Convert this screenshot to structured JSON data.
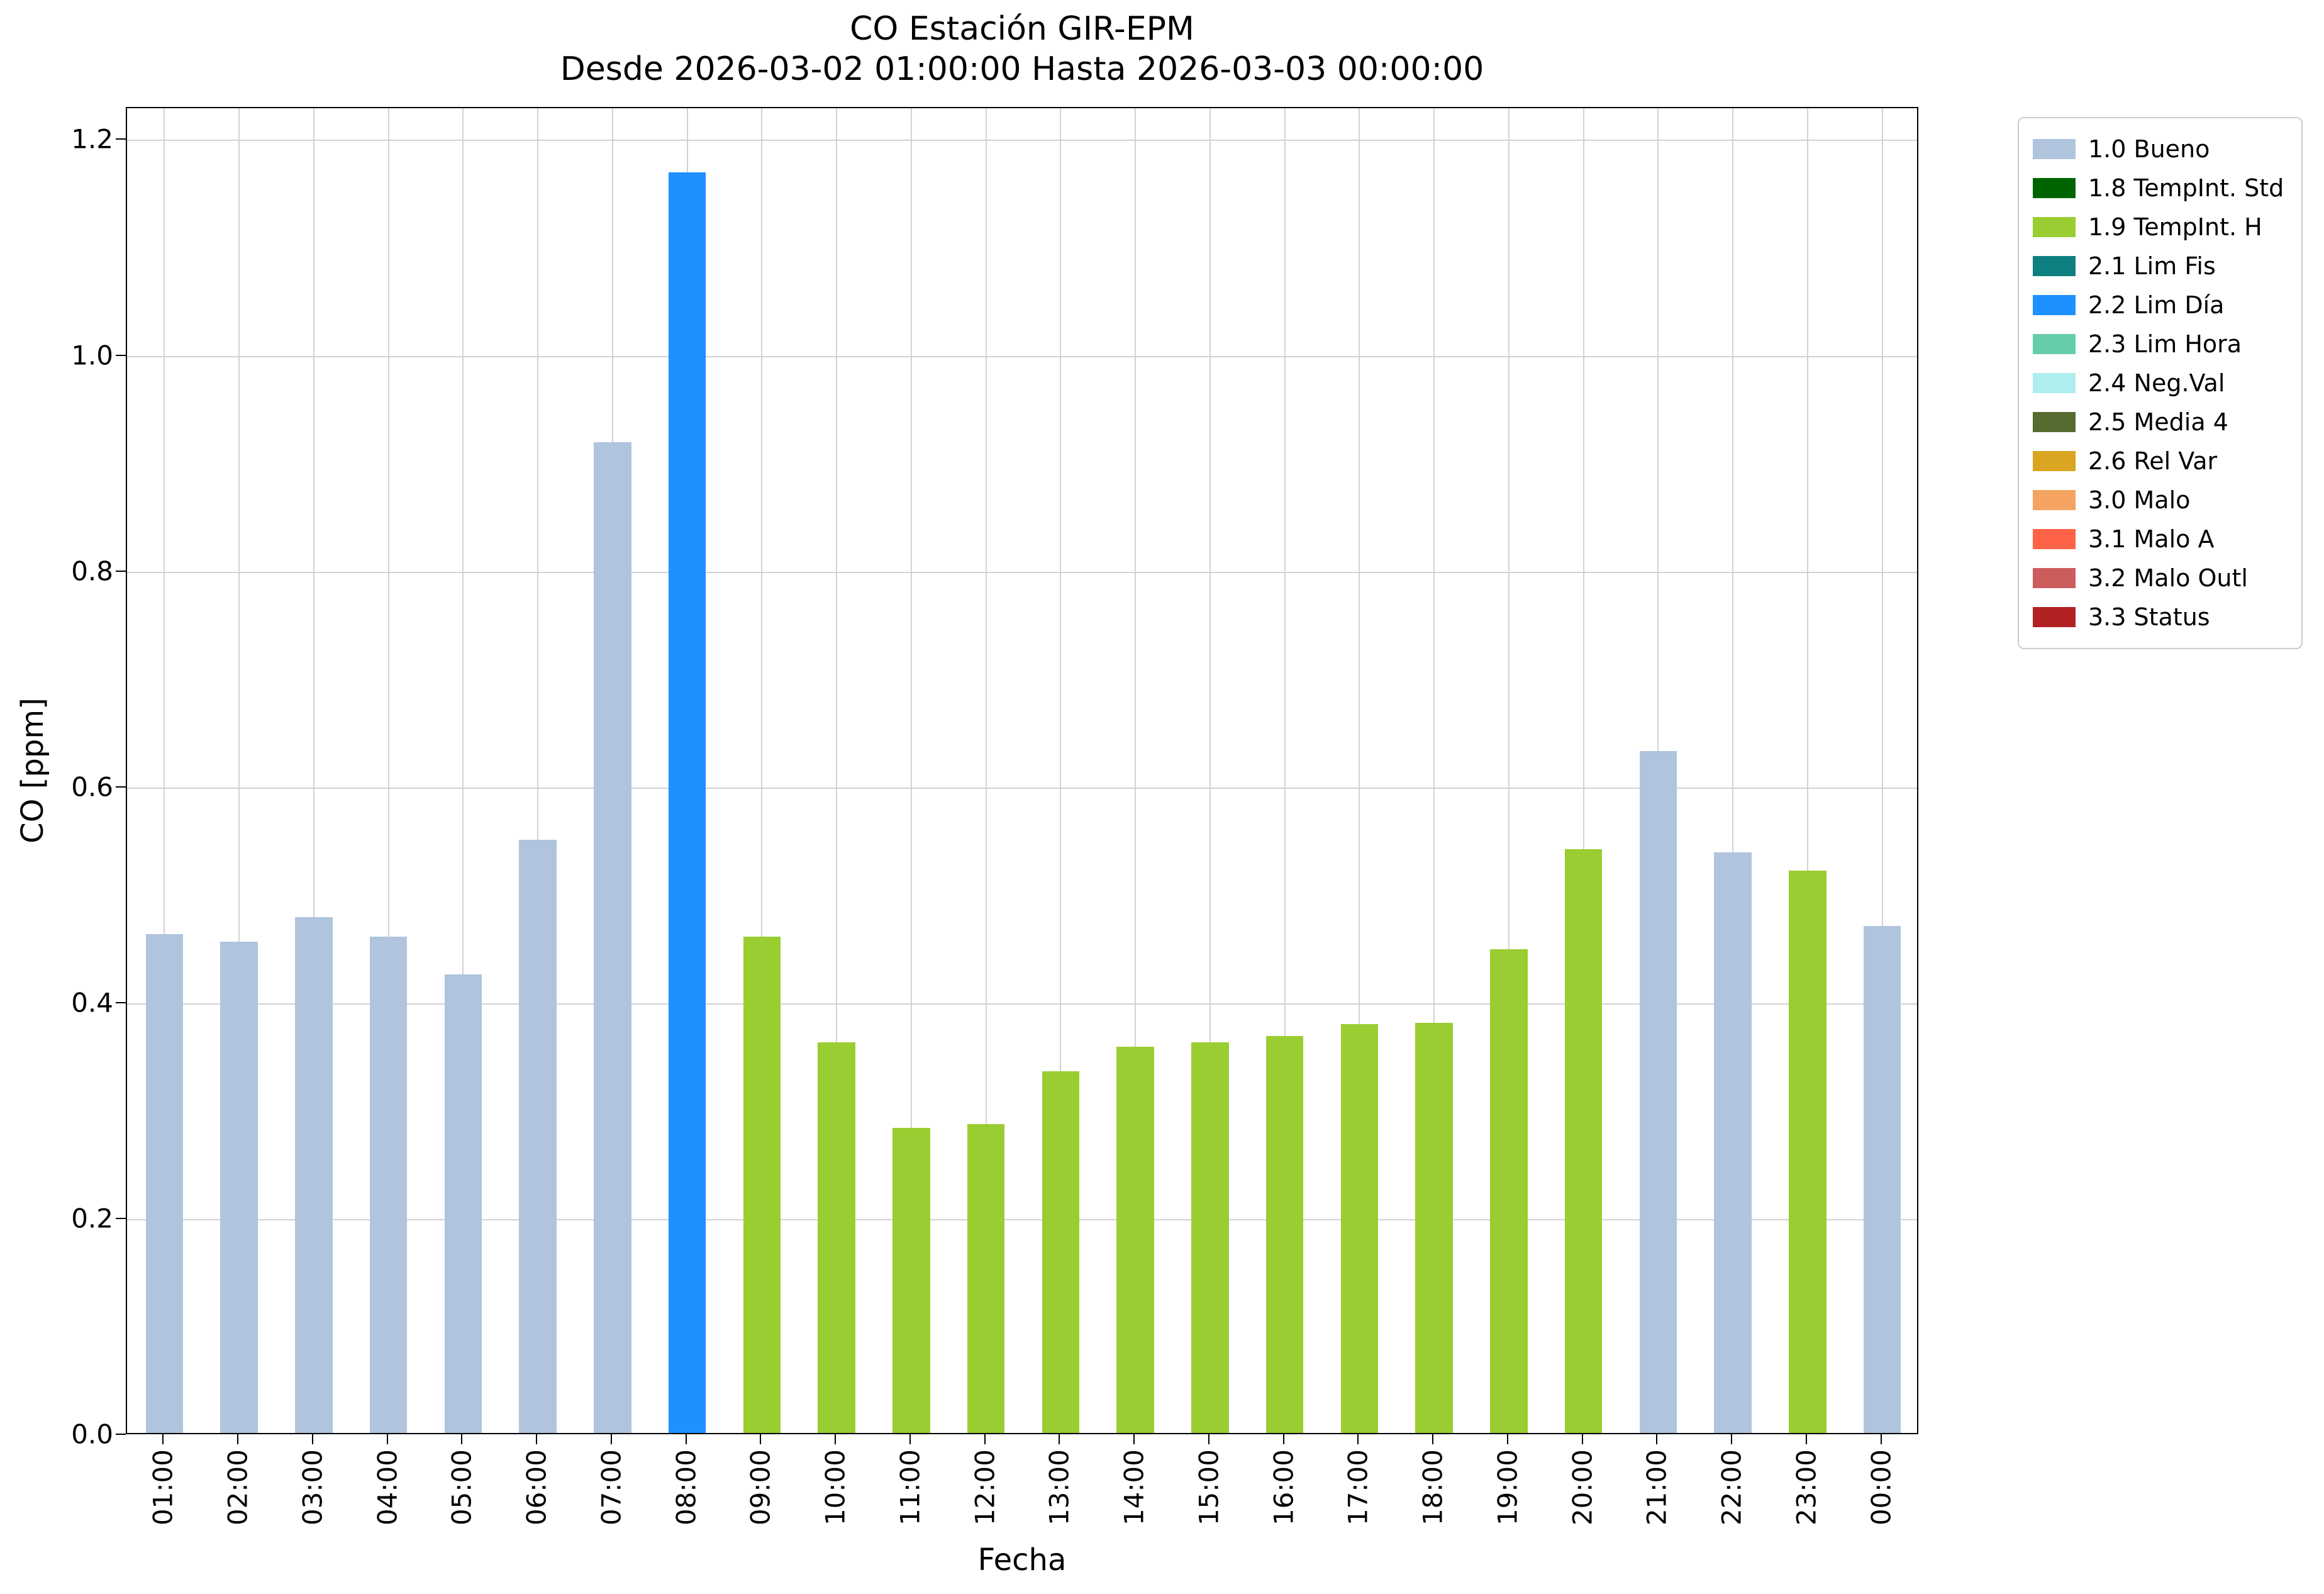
{
  "chart_data": {
    "type": "bar",
    "title": "CO Estación GIR-EPM",
    "subtitle": "Desde 2026-03-02 01:00:00 Hasta 2026-03-03 00:00:00",
    "xlabel": "Fecha",
    "ylabel": "CO [ppm]",
    "ylim": [
      0,
      1.23
    ],
    "ytick_labels": [
      "0.0",
      "0.2",
      "0.4",
      "0.6",
      "0.8",
      "1.0",
      "1.2"
    ],
    "yticks": [
      0.0,
      0.2,
      0.4,
      0.6,
      0.8,
      1.0,
      1.2
    ],
    "grid": true,
    "legend_position": "outside-top-right",
    "categories": [
      "01:00",
      "02:00",
      "03:00",
      "04:00",
      "05:00",
      "06:00",
      "07:00",
      "08:00",
      "09:00",
      "10:00",
      "11:00",
      "12:00",
      "13:00",
      "14:00",
      "15:00",
      "16:00",
      "17:00",
      "18:00",
      "19:00",
      "20:00",
      "21:00",
      "22:00",
      "23:00",
      "00:00"
    ],
    "values": [
      0.462,
      0.455,
      0.478,
      0.46,
      0.425,
      0.55,
      0.918,
      1.168,
      0.46,
      0.362,
      0.283,
      0.286,
      0.335,
      0.358,
      0.362,
      0.368,
      0.379,
      0.38,
      0.448,
      0.541,
      0.632,
      0.538,
      0.521,
      0.47
    ],
    "flags": [
      "bueno",
      "bueno",
      "bueno",
      "bueno",
      "bueno",
      "bueno",
      "bueno",
      "lim_dia",
      "tempint_h",
      "tempint_h",
      "tempint_h",
      "tempint_h",
      "tempint_h",
      "tempint_h",
      "tempint_h",
      "tempint_h",
      "tempint_h",
      "tempint_h",
      "tempint_h",
      "tempint_h",
      "bueno",
      "bueno",
      "tempint_h",
      "bueno"
    ],
    "legend": [
      {
        "key": "bueno",
        "label": "1.0 Bueno",
        "color": "#b0c4de"
      },
      {
        "key": "tempint_std",
        "label": "1.8 TempInt. Std",
        "color": "#006400"
      },
      {
        "key": "tempint_h",
        "label": "1.9 TempInt. H",
        "color": "#9acd32"
      },
      {
        "key": "lim_fis",
        "label": "2.1 Lim Fis",
        "color": "#0e8080"
      },
      {
        "key": "lim_dia",
        "label": "2.2 Lim Día",
        "color": "#1e90ff"
      },
      {
        "key": "lim_hora",
        "label": "2.3 Lim Hora",
        "color": "#66cdaa"
      },
      {
        "key": "neg_val",
        "label": "2.4 Neg.Val",
        "color": "#afeeee"
      },
      {
        "key": "media_4",
        "label": "2.5 Media 4",
        "color": "#556b2f"
      },
      {
        "key": "rel_var",
        "label": "2.6 Rel Var",
        "color": "#daa520"
      },
      {
        "key": "malo",
        "label": "3.0 Malo",
        "color": "#f4a460"
      },
      {
        "key": "malo_a",
        "label": "3.1 Malo A",
        "color": "#ff6347"
      },
      {
        "key": "malo_outl",
        "label": "3.2 Malo Outl",
        "color": "#cd5c5c"
      },
      {
        "key": "status",
        "label": "3.3 Status",
        "color": "#b22222"
      }
    ]
  }
}
